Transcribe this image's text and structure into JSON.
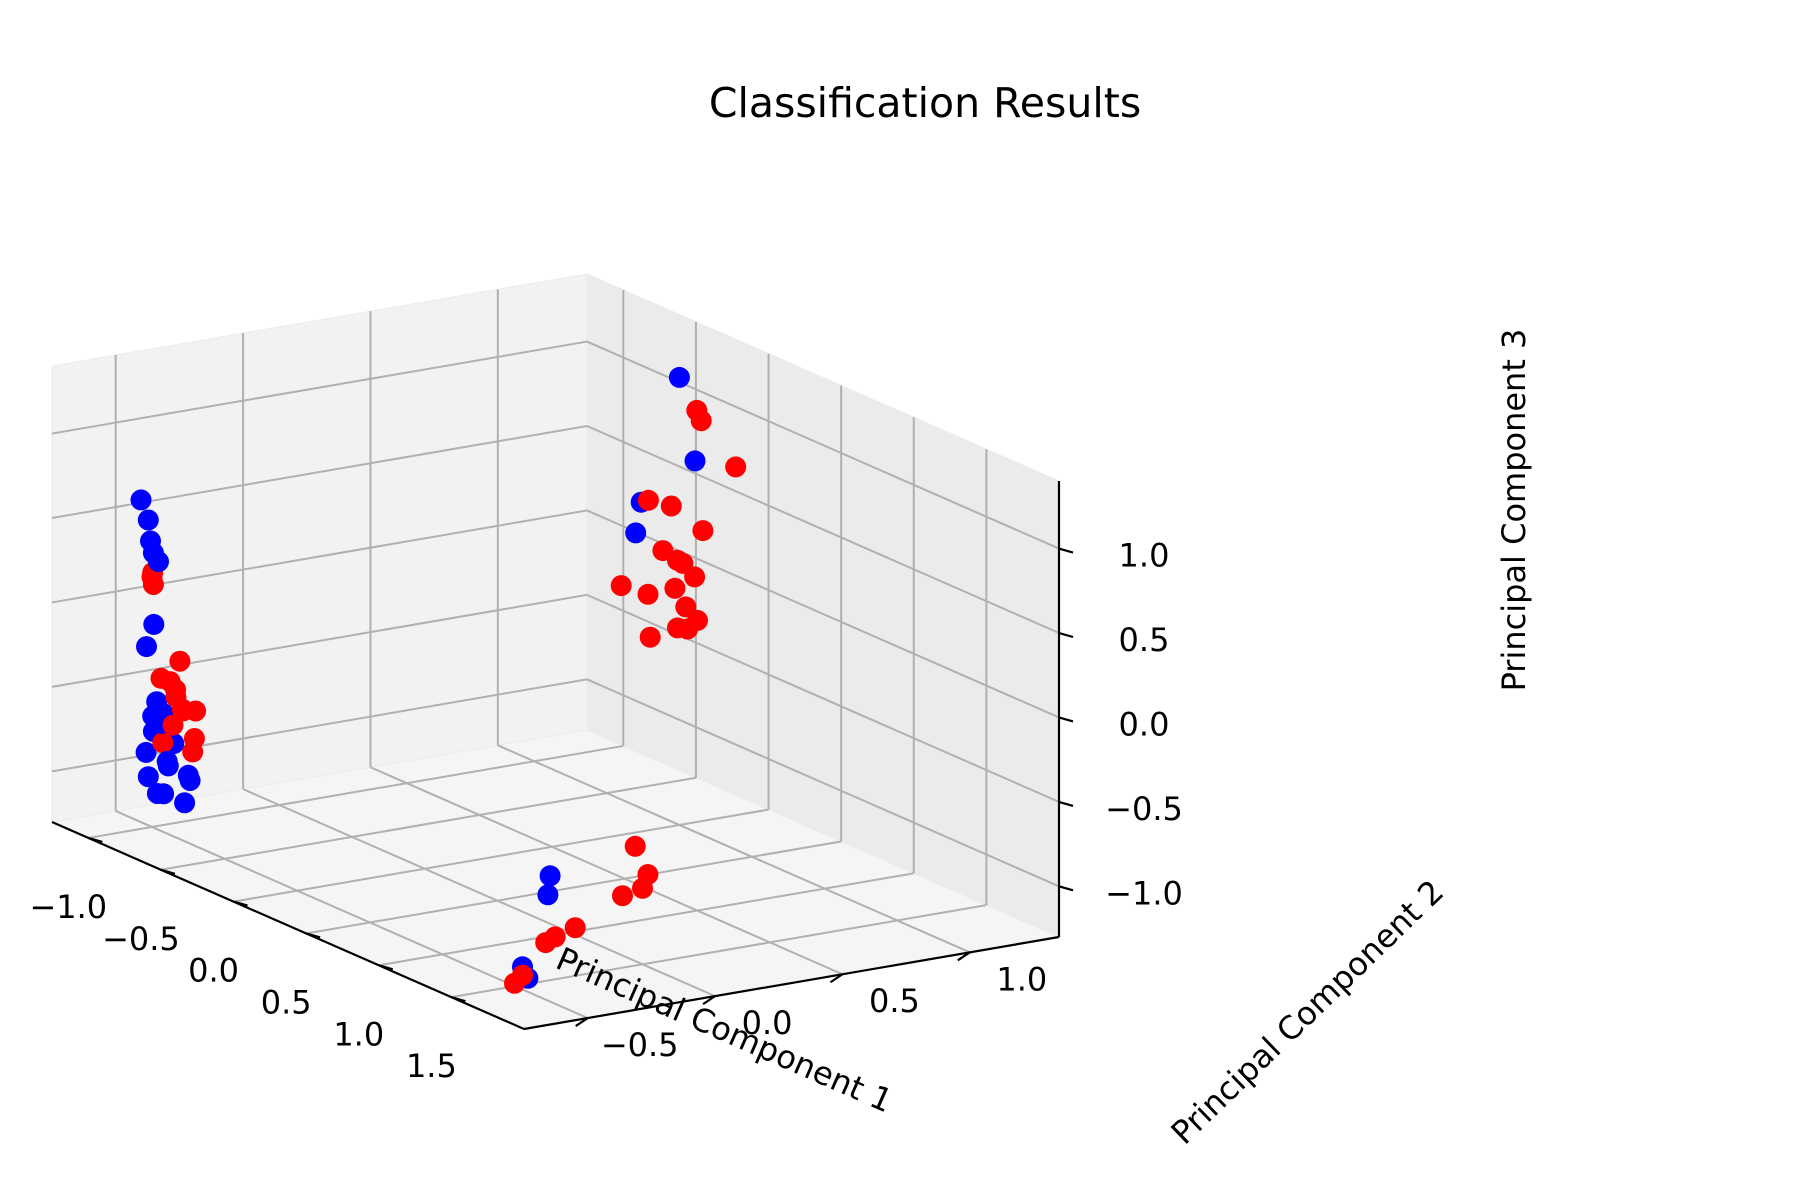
{
  "chart_data": {
    "type": "scatter",
    "projection": "3d",
    "title": "Classification Results",
    "xlabel": "Principal Component 1",
    "ylabel": "Principal Component 2",
    "zlabel": "Principal Component 3",
    "xlim": [
      -1.25,
      2.0
    ],
    "ylim": [
      -0.75,
      1.35
    ],
    "zlim": [
      -1.3,
      1.4
    ],
    "xticks": [
      -1.0,
      -0.5,
      0.0,
      0.5,
      1.0,
      1.5
    ],
    "yticks": [
      -0.5,
      0.0,
      0.5,
      1.0
    ],
    "zticks": [
      -1.0,
      -0.5,
      0.0,
      0.5,
      1.0
    ],
    "xtick_labels": [
      "−1.0",
      "−0.5",
      "0.0",
      "0.5",
      "1.0",
      "1.5"
    ],
    "ytick_labels": [
      "−0.5",
      "0.0",
      "0.5",
      "1.0"
    ],
    "ztick_labels": [
      "−1.0",
      "−0.5",
      "0.0",
      "0.5",
      "1.0"
    ],
    "grid": true,
    "colors": {
      "class_blue": "#0000ff",
      "class_red": "#ff0000"
    },
    "series": [
      {
        "color": "#0000ff",
        "points": [
          [
            -0.9,
            -0.55,
            -0.05
          ],
          [
            -0.88,
            -0.55,
            -0.5
          ],
          [
            -0.92,
            -0.5,
            -0.6
          ],
          [
            -0.82,
            -0.6,
            -0.55
          ],
          [
            -0.95,
            -0.45,
            -0.65
          ],
          [
            -0.85,
            -0.5,
            -0.75
          ],
          [
            -0.78,
            -0.62,
            -0.62
          ],
          [
            -0.9,
            -0.58,
            -0.8
          ],
          [
            -0.8,
            -0.55,
            -0.85
          ],
          [
            -0.72,
            -0.6,
            -0.78
          ],
          [
            -0.75,
            -0.5,
            -0.9
          ],
          [
            -0.85,
            -0.6,
            -0.92
          ],
          [
            -0.7,
            -0.65,
            -0.95
          ],
          [
            -0.65,
            -0.55,
            -0.88
          ],
          [
            -0.78,
            -0.58,
            -1.0
          ],
          [
            -0.6,
            -0.6,
            -0.98
          ],
          [
            -0.9,
            -0.6,
            0.7
          ],
          [
            -0.85,
            -0.6,
            0.6
          ],
          [
            -0.8,
            -0.62,
            0.5
          ],
          [
            -0.85,
            -0.58,
            0.4
          ],
          [
            -0.78,
            -0.6,
            0.38
          ],
          [
            -0.95,
            -0.55,
            -0.2
          ],
          [
            0.0,
            1.0,
            1.35
          ],
          [
            0.02,
            1.05,
            0.85
          ],
          [
            0.0,
            0.85,
            0.65
          ],
          [
            0.05,
            0.8,
            0.5
          ],
          [
            1.2,
            -0.2,
            -0.95
          ],
          [
            1.18,
            -0.18,
            -0.85
          ],
          [
            1.15,
            -0.25,
            -1.45
          ],
          [
            1.2,
            -0.3,
            -1.35
          ],
          [
            -0.72,
            -0.62,
            -0.55
          ],
          [
            -0.88,
            -0.52,
            -0.7
          ]
        ]
      },
      {
        "color": "#ff0000",
        "points": [
          [
            -1.0,
            -0.5,
            0.18
          ],
          [
            -0.82,
            -0.6,
            0.3
          ],
          [
            -0.78,
            -0.62,
            0.25
          ],
          [
            -0.72,
            -0.55,
            -0.2
          ],
          [
            -0.7,
            -0.6,
            -0.3
          ],
          [
            -0.75,
            -0.55,
            -0.38
          ],
          [
            -0.8,
            -0.52,
            -0.45
          ],
          [
            -0.7,
            -0.5,
            -0.5
          ],
          [
            -0.85,
            -0.55,
            -0.35
          ],
          [
            -0.65,
            -0.58,
            -0.45
          ],
          [
            -0.68,
            -0.6,
            -0.55
          ],
          [
            -0.82,
            -0.48,
            -0.55
          ],
          [
            -0.62,
            -0.55,
            -0.62
          ],
          [
            -0.75,
            -0.6,
            -0.68
          ],
          [
            -0.72,
            -0.5,
            -0.75
          ],
          [
            0.12,
            1.0,
            1.2
          ],
          [
            0.15,
            1.0,
            1.15
          ],
          [
            0.3,
            1.05,
            0.92
          ],
          [
            0.05,
            0.85,
            0.68
          ],
          [
            0.12,
            0.9,
            0.66
          ],
          [
            0.25,
            0.95,
            0.55
          ],
          [
            0.15,
            0.85,
            0.42
          ],
          [
            0.2,
            0.9,
            0.35
          ],
          [
            0.25,
            0.85,
            0.4
          ],
          [
            0.28,
            0.9,
            0.3
          ],
          [
            0.18,
            0.88,
            0.2
          ],
          [
            0.22,
            0.9,
            0.1
          ],
          [
            0.25,
            0.85,
            0.0
          ],
          [
            0.3,
            0.9,
            0.05
          ],
          [
            0.32,
            0.85,
            0.02
          ],
          [
            0.1,
            0.82,
            0.15
          ],
          [
            0.15,
            0.8,
            -0.08
          ],
          [
            -0.05,
            0.8,
            0.15
          ],
          [
            1.45,
            0.0,
            -0.62
          ],
          [
            1.45,
            0.05,
            -0.8
          ],
          [
            1.5,
            0.0,
            -0.85
          ],
          [
            1.45,
            -0.05,
            -0.9
          ],
          [
            1.25,
            -0.2,
            -1.18
          ],
          [
            1.22,
            -0.22,
            -1.22
          ],
          [
            1.3,
            -0.15,
            -1.12
          ],
          [
            1.2,
            -0.3,
            -1.4
          ],
          [
            1.18,
            -0.32,
            -1.45
          ]
        ]
      }
    ]
  }
}
